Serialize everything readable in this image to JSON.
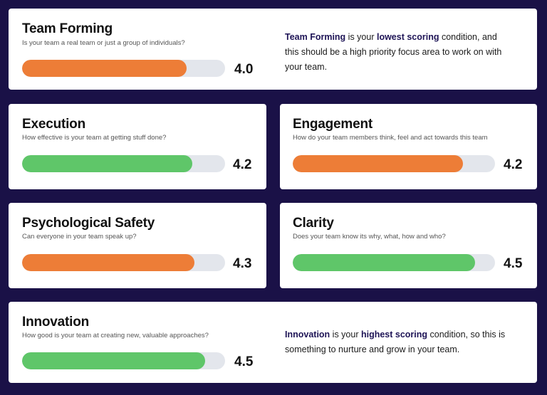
{
  "colors": {
    "orange": "#ed7d37",
    "green": "#5fc669",
    "track": "#e3e6ec"
  },
  "scale_max": 5,
  "cards": {
    "team_forming": {
      "title": "Team Forming",
      "subtitle": "Is your team a real team or just a group of individuals?",
      "score": "4.0",
      "fill_fraction": 0.81,
      "color": "orange",
      "note": {
        "name": "Team Forming",
        "t1": " is your ",
        "emphasis": "lowest scoring",
        "t2": " condition, and this should be a high priority focus area to work on with your team."
      }
    },
    "execution": {
      "title": "Execution",
      "subtitle": "How effective is your team at getting stuff done?",
      "score": "4.2",
      "fill_fraction": 0.84,
      "color": "green"
    },
    "engagement": {
      "title": "Engagement",
      "subtitle": "How do your team members think, feel and act towards this team",
      "score": "4.2",
      "fill_fraction": 0.84,
      "color": "orange"
    },
    "psychological_safety": {
      "title": "Psychological Safety",
      "subtitle": "Can everyone in your team speak up?",
      "score": "4.3",
      "fill_fraction": 0.85,
      "color": "orange"
    },
    "clarity": {
      "title": "Clarity",
      "subtitle": "Does your team know its why, what, how and who?",
      "score": "4.5",
      "fill_fraction": 0.9,
      "color": "green"
    },
    "innovation": {
      "title": "Innovation",
      "subtitle": "How good is your team at creating new, valuable approaches?",
      "score": "4.5",
      "fill_fraction": 0.9,
      "color": "green",
      "note": {
        "name": "Innovation",
        "t1": " is your ",
        "emphasis": "highest scoring",
        "t2": " condition, so this is something to nurture and grow in your team."
      }
    }
  }
}
